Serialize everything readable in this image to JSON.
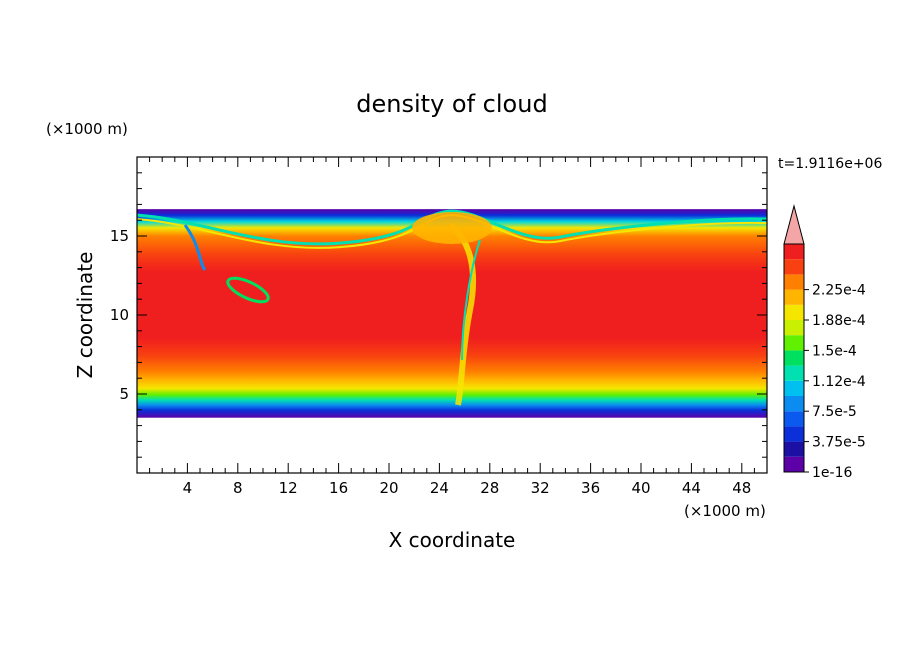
{
  "chart_data": {
    "type": "heatmap",
    "title": "density of cloud",
    "xlabel": "X coordinate",
    "ylabel": "Z coordinate",
    "x_unit": "(×1000 m)",
    "y_unit": "(×1000 m)",
    "time_label": "t=1.9116e+06",
    "xlim": [
      0,
      50
    ],
    "ylim": [
      0,
      20
    ],
    "x_ticks": [
      4,
      8,
      12,
      16,
      20,
      24,
      28,
      32,
      36,
      40,
      44,
      48
    ],
    "y_ticks": [
      5,
      10,
      15
    ],
    "colorbar": {
      "labels": [
        "1e-16",
        "3.75e-5",
        "7.5e-5",
        "1.12e-4",
        "1.5e-4",
        "1.88e-4",
        "2.25e-4"
      ],
      "levels": [
        1e-16,
        1.875e-05,
        3.75e-05,
        5.625e-05,
        7.5e-05,
        9.375e-05,
        0.0001125,
        0.00013125,
        0.00015,
        0.00016875,
        0.0001875,
        0.00020625,
        0.000225,
        0.00024375
      ],
      "colors": [
        "#5c00a8",
        "#1c0fa4",
        "#0b2fd8",
        "#0a5af0",
        "#0a8cf0",
        "#00c0f0",
        "#00e0b0",
        "#00e060",
        "#60f000",
        "#c8f000",
        "#f5e600",
        "#ffb400",
        "#ff8000",
        "#f84010",
        "#f01f1f"
      ],
      "overflow_color": "#f4a6a6"
    },
    "cloud_layer": {
      "base_z": 3.5,
      "top_z": 16.7,
      "core_value": 0.00024
    }
  }
}
